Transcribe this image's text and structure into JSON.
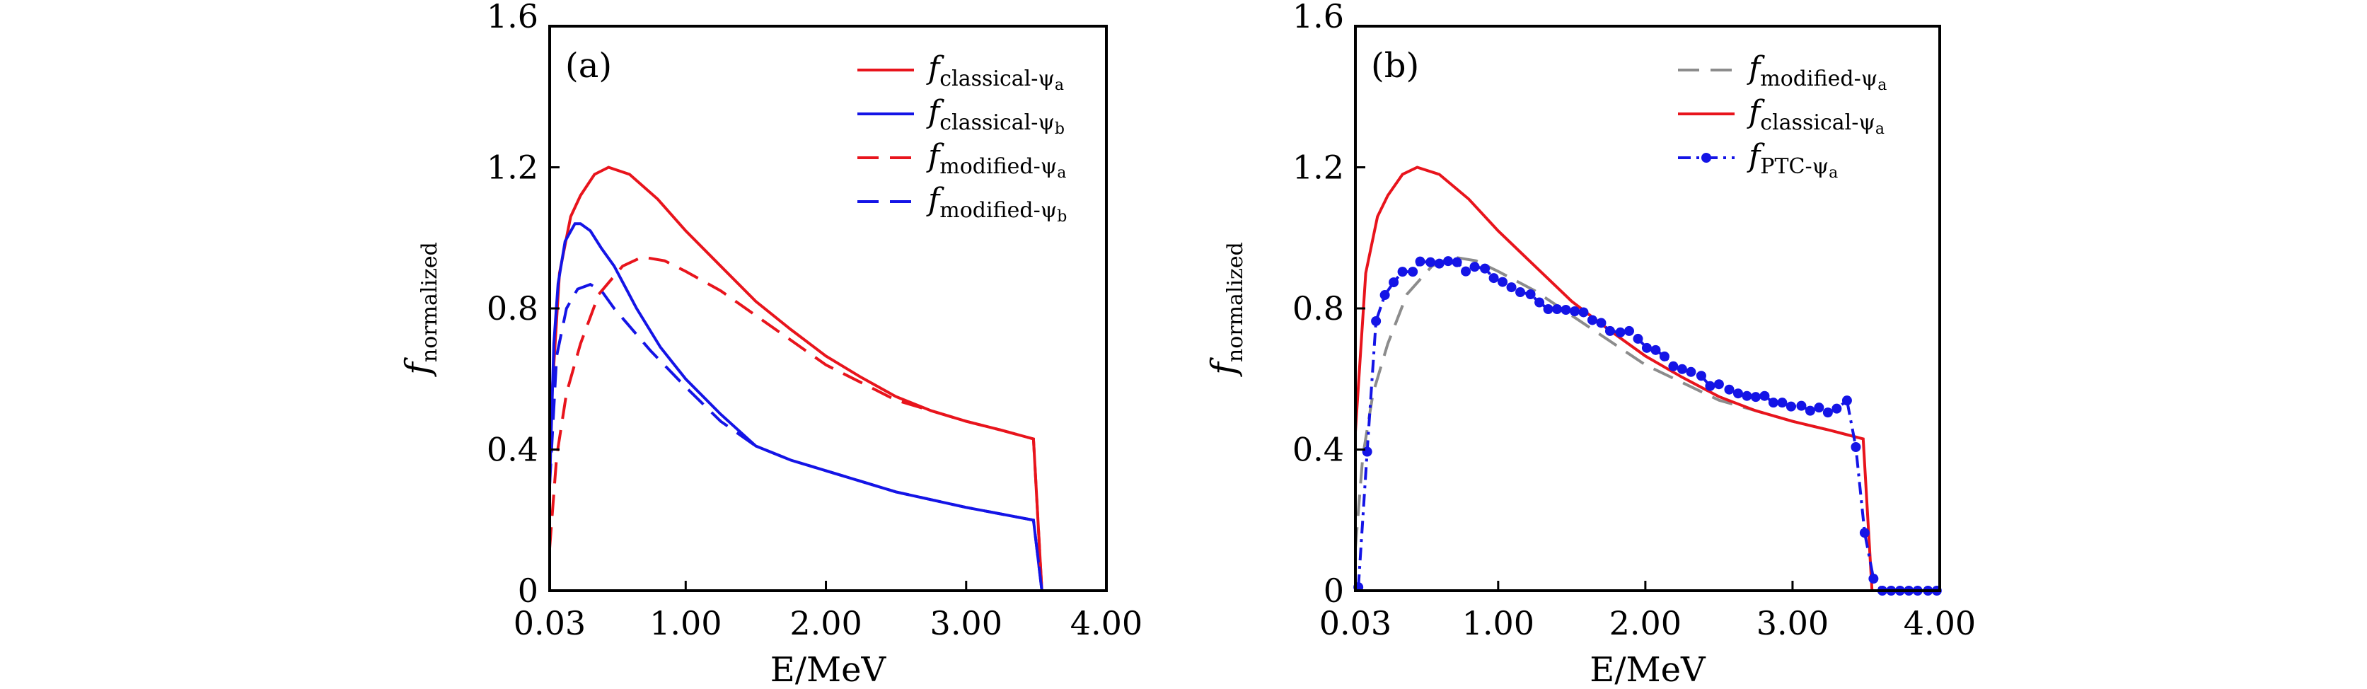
{
  "chart_data": [
    {
      "type": "line",
      "panel_label": "(a)",
      "xlabel": "E/MeV",
      "ylabel": "f_normalized",
      "xlim": [
        0.03,
        4.0
      ],
      "ylim": [
        0,
        1.6
      ],
      "xticks": [
        "0.03",
        "1.00",
        "2.00",
        "3.00",
        "4.00"
      ],
      "xtick_values": [
        0.03,
        1,
        2,
        3,
        4
      ],
      "yticks": [
        "0",
        "0.4",
        "0.8",
        "1.2",
        "1.6"
      ],
      "ytick_values": [
        0,
        0.4,
        0.8,
        1.2,
        1.6
      ],
      "legend_position": "top-right",
      "series": [
        {
          "name": "f_classical-ψa",
          "main": "f",
          "subscript": "classical-ψ",
          "sub2": "a",
          "color": "#e8141c",
          "style": "solid",
          "x": [
            0.03,
            0.1,
            0.18,
            0.25,
            0.35,
            0.45,
            0.6,
            0.8,
            1.0,
            1.25,
            1.5,
            1.75,
            2.0,
            2.25,
            2.5,
            2.75,
            3.0,
            3.25,
            3.48,
            3.54,
            4.0
          ],
          "y": [
            0.45,
            0.9,
            1.06,
            1.12,
            1.18,
            1.2,
            1.18,
            1.11,
            1.02,
            0.92,
            0.82,
            0.74,
            0.665,
            0.605,
            0.55,
            0.51,
            0.48,
            0.455,
            0.43,
            0,
            0
          ]
        },
        {
          "name": "f_classical-ψb",
          "main": "f",
          "subscript": "classical-ψ",
          "sub2": "b",
          "color": "#1414e6",
          "style": "solid",
          "x": [
            0.03,
            0.06,
            0.09,
            0.14,
            0.21,
            0.25,
            0.32,
            0.4,
            0.49,
            0.65,
            0.82,
            1.0,
            1.25,
            1.5,
            1.75,
            2.0,
            2.5,
            3.0,
            3.48,
            3.54,
            4.0
          ],
          "y": [
            0.3,
            0.7,
            0.87,
            0.99,
            1.04,
            1.04,
            1.02,
            0.97,
            0.92,
            0.8,
            0.69,
            0.6,
            0.5,
            0.41,
            0.37,
            0.34,
            0.28,
            0.236,
            0.2,
            0,
            0
          ]
        },
        {
          "name": "f_modified-ψa",
          "main": "f",
          "subscript": "modified-ψ",
          "sub2": "a",
          "color": "#e8141c",
          "style": "dashed",
          "x": [
            0.03,
            0.08,
            0.15,
            0.25,
            0.38,
            0.55,
            0.69,
            0.85,
            1.0,
            1.25,
            1.5,
            1.75,
            2.0,
            2.25,
            2.5,
            2.75,
            3.0,
            3.25,
            3.48,
            3.54,
            4.0
          ],
          "y": [
            0.12,
            0.38,
            0.56,
            0.7,
            0.84,
            0.92,
            0.946,
            0.935,
            0.905,
            0.85,
            0.78,
            0.71,
            0.64,
            0.59,
            0.54,
            0.51,
            0.48,
            0.455,
            0.43,
            0,
            0
          ]
        },
        {
          "name": "f_modified-ψb",
          "main": "f",
          "subscript": "modified-ψ",
          "sub2": "b",
          "color": "#1414e6",
          "style": "dashed",
          "x": [
            0.03,
            0.08,
            0.15,
            0.23,
            0.32,
            0.4,
            0.49,
            0.75,
            1.0,
            1.25,
            1.5,
            1.75,
            2.0,
            2.5,
            3.0,
            3.48,
            3.54,
            4.0
          ],
          "y": [
            0.3,
            0.665,
            0.8,
            0.855,
            0.868,
            0.85,
            0.8,
            0.68,
            0.577,
            0.48,
            0.41,
            0.37,
            0.34,
            0.28,
            0.236,
            0.2,
            0,
            0
          ]
        }
      ]
    },
    {
      "type": "line",
      "panel_label": "(b)",
      "xlabel": "E/MeV",
      "ylabel": "f_normalized",
      "xlim": [
        0.03,
        4.0
      ],
      "ylim": [
        0,
        1.6
      ],
      "xticks": [
        "0.03",
        "1.00",
        "2.00",
        "3.00",
        "4.00"
      ],
      "xtick_values": [
        0.03,
        1,
        2,
        3,
        4
      ],
      "yticks": [
        "0",
        "0.4",
        "0.8",
        "1.2",
        "1.6"
      ],
      "ytick_values": [
        0,
        0.4,
        0.8,
        1.2,
        1.6
      ],
      "legend_position": "top-right",
      "series": [
        {
          "name": "f_modified-ψa",
          "main": "f",
          "subscript": "modified-ψ",
          "sub2": "a",
          "color": "#8c8c8c",
          "style": "dashed",
          "x": [
            0.03,
            0.08,
            0.15,
            0.25,
            0.38,
            0.55,
            0.69,
            0.85,
            1.0,
            1.25,
            1.5,
            1.75,
            2.0,
            2.25,
            2.5,
            2.75,
            3.0,
            3.25,
            3.48
          ],
          "y": [
            0.12,
            0.38,
            0.56,
            0.7,
            0.84,
            0.92,
            0.946,
            0.935,
            0.905,
            0.85,
            0.78,
            0.71,
            0.64,
            0.59,
            0.54,
            0.51,
            0.48,
            0.455,
            0.43
          ]
        },
        {
          "name": "f_classical-ψa",
          "main": "f",
          "subscript": "classical-ψ",
          "sub2": "a",
          "color": "#e8141c",
          "style": "solid",
          "x": [
            0.03,
            0.1,
            0.18,
            0.25,
            0.35,
            0.45,
            0.6,
            0.8,
            1.0,
            1.25,
            1.5,
            1.75,
            2.0,
            2.25,
            2.5,
            2.75,
            3.0,
            3.25,
            3.48,
            3.54
          ],
          "y": [
            0.45,
            0.9,
            1.06,
            1.12,
            1.18,
            1.2,
            1.18,
            1.11,
            1.02,
            0.92,
            0.82,
            0.74,
            0.665,
            0.605,
            0.55,
            0.51,
            0.48,
            0.455,
            0.43,
            0
          ]
        },
        {
          "name": "f_PTC-ψa",
          "main": "f",
          "subscript": "PTC-ψ",
          "sub2": "a",
          "color": "#1414e6",
          "style": "dash-dot-markers",
          "x": [
            0.05,
            0.11,
            0.17,
            0.23,
            0.29,
            0.35,
            0.42,
            0.47,
            0.54,
            0.6,
            0.66,
            0.72,
            0.78,
            0.84,
            0.91,
            0.97,
            1.03,
            1.09,
            1.15,
            1.22,
            1.28,
            1.34,
            1.4,
            1.46,
            1.52,
            1.58,
            1.64,
            1.7,
            1.76,
            1.83,
            1.89,
            1.95,
            2.01,
            2.07,
            2.13,
            2.19,
            2.25,
            2.31,
            2.38,
            2.44,
            2.5,
            2.57,
            2.63,
            2.69,
            2.75,
            2.81,
            2.87,
            2.93,
            2.99,
            3.06,
            3.12,
            3.18,
            3.24,
            3.3,
            3.37,
            3.43,
            3.49,
            3.55,
            3.61,
            3.67,
            3.73,
            3.79,
            3.85,
            3.92,
            3.98
          ],
          "y": [
            0.01,
            0.394,
            0.764,
            0.838,
            0.874,
            0.904,
            0.904,
            0.933,
            0.931,
            0.927,
            0.934,
            0.931,
            0.905,
            0.918,
            0.913,
            0.886,
            0.875,
            0.86,
            0.846,
            0.84,
            0.817,
            0.798,
            0.798,
            0.796,
            0.792,
            0.789,
            0.767,
            0.759,
            0.736,
            0.732,
            0.736,
            0.714,
            0.688,
            0.682,
            0.664,
            0.636,
            0.628,
            0.62,
            0.609,
            0.58,
            0.585,
            0.57,
            0.559,
            0.552,
            0.549,
            0.552,
            0.533,
            0.533,
            0.522,
            0.524,
            0.51,
            0.519,
            0.505,
            0.516,
            0.539,
            0.407,
            0.164,
            0.034,
            0,
            0,
            0,
            0,
            0,
            0,
            0
          ]
        }
      ]
    }
  ]
}
